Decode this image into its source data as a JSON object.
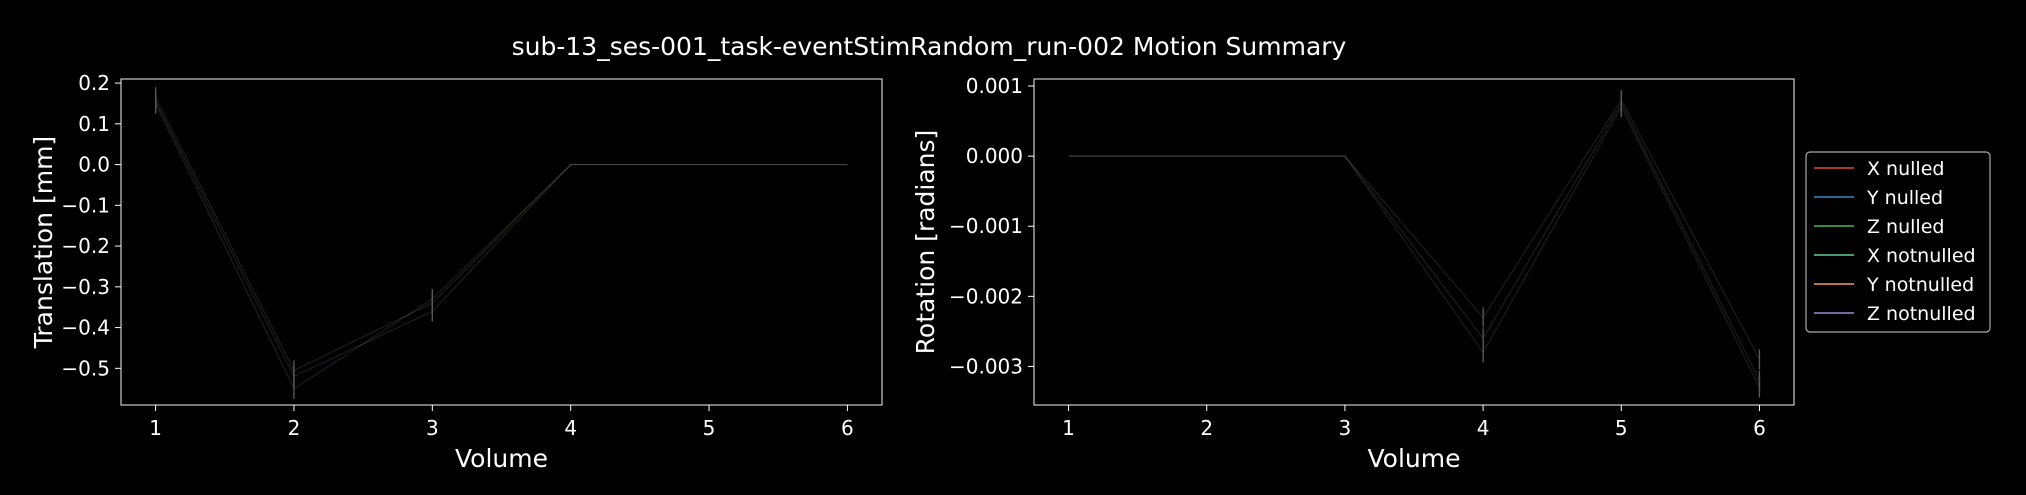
{
  "title": "sub-13_ses-001_task-eventStimRandom_run-002 Motion Summary",
  "chart_data": [
    {
      "type": "line",
      "xlabel": "Volume",
      "ylabel": "Translation [mm]",
      "xlim": [
        0.75,
        6.25
      ],
      "ylim": [
        -0.59,
        0.21
      ],
      "xticks": [
        1,
        2,
        3,
        4,
        5,
        6
      ],
      "xtick_labels": [
        "1",
        "2",
        "3",
        "4",
        "5",
        "6"
      ],
      "yticks": [
        0.2,
        0.1,
        0.0,
        -0.1,
        -0.2,
        -0.3,
        -0.4,
        -0.5
      ],
      "ytick_labels": [
        "0.2",
        "0.1",
        "0.0",
        "−0.1",
        "−0.2",
        "−0.3",
        "−0.4",
        "−0.5"
      ],
      "grid": false,
      "series": [
        {
          "name": "X nulled",
          "x": [
            1,
            2,
            3,
            4,
            5,
            6
          ],
          "y": [
            0.165,
            -0.505,
            -0.34,
            0,
            0,
            0
          ]
        },
        {
          "name": "Y nulled",
          "x": [
            1,
            2,
            3,
            4,
            5,
            6
          ],
          "y": [
            0.15,
            -0.55,
            -0.33,
            0,
            0,
            0
          ]
        },
        {
          "name": "Z nulled",
          "x": [
            1,
            2,
            3,
            4,
            5,
            6
          ],
          "y": [
            0.155,
            -0.52,
            -0.36,
            0,
            0,
            0
          ]
        },
        {
          "name": "X notnulled",
          "x": [
            1,
            2,
            3,
            4,
            5,
            6
          ],
          "y": [
            0.165,
            -0.505,
            -0.34,
            0,
            0,
            0
          ]
        },
        {
          "name": "Y notnulled",
          "x": [
            1,
            2,
            3,
            4,
            5,
            6
          ],
          "y": [
            0.15,
            -0.55,
            -0.33,
            0,
            0,
            0
          ]
        },
        {
          "name": "Z notnulled",
          "x": [
            1,
            2,
            3,
            4,
            5,
            6
          ],
          "y": [
            0.155,
            -0.52,
            -0.36,
            0,
            0,
            0
          ]
        }
      ]
    },
    {
      "type": "line",
      "xlabel": "Volume",
      "ylabel": "Rotation [radians]",
      "xlim": [
        0.75,
        6.25
      ],
      "ylim": [
        -0.00355,
        0.0011
      ],
      "xticks": [
        1,
        2,
        3,
        4,
        5,
        6
      ],
      "xtick_labels": [
        "1",
        "2",
        "3",
        "4",
        "5",
        "6"
      ],
      "yticks": [
        0.001,
        0.0,
        -0.001,
        -0.002,
        -0.003
      ],
      "ytick_labels": [
        "0.001",
        "0.000",
        "−0.001",
        "−0.002",
        "−0.003"
      ],
      "grid": false,
      "series": [
        {
          "name": "X nulled",
          "x": [
            1,
            2,
            3,
            4,
            5,
            6
          ],
          "y": [
            0,
            0,
            0,
            -0.0023,
            0.0008,
            -0.0029
          ]
        },
        {
          "name": "Y nulled",
          "x": [
            1,
            2,
            3,
            4,
            5,
            6
          ],
          "y": [
            0,
            0,
            0,
            -0.0026,
            0.00075,
            -0.0032
          ]
        },
        {
          "name": "Z nulled",
          "x": [
            1,
            2,
            3,
            4,
            5,
            6
          ],
          "y": [
            0,
            0,
            0,
            -0.0028,
            0.0007,
            -0.0033
          ]
        },
        {
          "name": "X notnulled",
          "x": [
            1,
            2,
            3,
            4,
            5,
            6
          ],
          "y": [
            0,
            0,
            0,
            -0.0023,
            0.0008,
            -0.0029
          ]
        },
        {
          "name": "Y notnulled",
          "x": [
            1,
            2,
            3,
            4,
            5,
            6
          ],
          "y": [
            0,
            0,
            0,
            -0.0026,
            0.00075,
            -0.0032
          ]
        },
        {
          "name": "Z notnulled",
          "x": [
            1,
            2,
            3,
            4,
            5,
            6
          ],
          "y": [
            0,
            0,
            0,
            -0.0028,
            0.0007,
            -0.0033
          ]
        }
      ]
    }
  ],
  "legend": {
    "placement": "right",
    "entries": [
      {
        "label": "X nulled",
        "color": "#e24a33"
      },
      {
        "label": "Y nulled",
        "color": "#348abd"
      },
      {
        "label": "Z nulled",
        "color": "#4fb54f"
      },
      {
        "label": "X notnulled",
        "color": "#5fd39a"
      },
      {
        "label": "Y notnulled",
        "color": "#f59a5b"
      },
      {
        "label": "Z notnulled",
        "color": "#8f8fd6"
      }
    ]
  },
  "colors": {
    "background": "#000000",
    "foreground": "#ffffff",
    "spine": "#cccccc"
  }
}
